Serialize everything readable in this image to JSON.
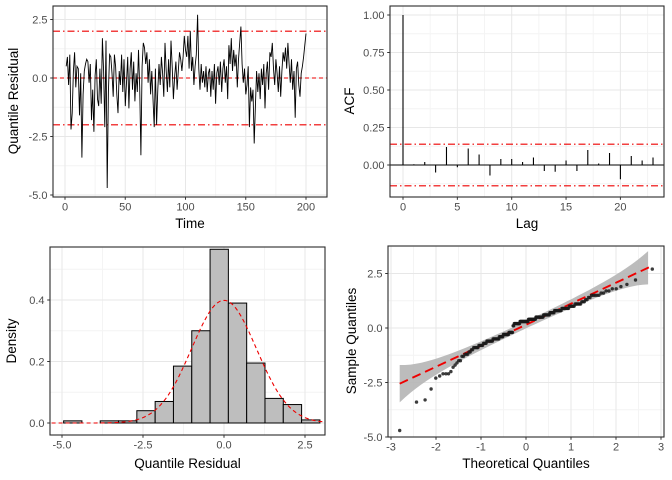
{
  "colors": {
    "accent_red": "#EE0000",
    "series_black": "#000000",
    "bar_fill": "#BEBEBE",
    "bar_stroke": "#000000",
    "band_gray": "#B5B5B5",
    "grid_major": "#E7E7E7",
    "grid_minor": "#F4F4F4",
    "panel_border": "#2B2B2B",
    "tick_text": "#4D4D4D",
    "background": "#FFFFFF"
  },
  "chart_data": [
    {
      "id": "residual-time-series",
      "type": "line",
      "xlabel": "Time",
      "ylabel": "Quantile Residual",
      "x_start": 1,
      "values": [
        0.5,
        0.9,
        -0.3,
        1.0,
        -2.2,
        -1.5,
        0.3,
        1.1,
        -0.4,
        0.5,
        0.4,
        -1.6,
        0.2,
        -3.4,
        -0.7,
        0.3,
        0.6,
        0.8,
        0.7,
        -0.2,
        0.6,
        -1.8,
        -0.5,
        -2.3,
        0.1,
        0.8,
        -0.9,
        -1.2,
        0.4,
        -1.1,
        1.7,
        0.3,
        -2.1,
        1.6,
        -4.7,
        -0.6,
        1.0,
        0.9,
        0.2,
        -0.8,
        1.0,
        0.5,
        -0.7,
        -1.5,
        0.3,
        -0.3,
        1.0,
        -0.6,
        0.8,
        -1.2,
        -0.2,
        0.9,
        -1.3,
        0.4,
        1.1,
        -0.5,
        0.7,
        -1.0,
        0.2,
        -0.6,
        1.2,
        -0.4,
        -3.3,
        0.5,
        1.5,
        1.3,
        0.6,
        1.1,
        -0.2,
        0.8,
        -0.7,
        0.3,
        -0.9,
        -2.1,
        0.4,
        -2.0,
        -0.5,
        0.6,
        -0.3,
        0.9,
        0.2,
        -0.8,
        1.5,
        0.3,
        -0.6,
        0.8,
        -0.4,
        1.6,
        0.5,
        -0.9,
        0.1,
        0.7,
        -0.5,
        0.3,
        1.1,
        0.8,
        0.3,
        0.9,
        1.8,
        1.2,
        0.9,
        1.8,
        0.4,
        2.0,
        0.3,
        0.9,
        -0.3,
        0.5,
        1.0,
        2.7,
        0.4,
        -0.5,
        0.6,
        -0.2,
        0.3,
        -0.4,
        0.5,
        -0.6,
        0.2,
        0.4,
        -0.8,
        0.3,
        -0.5,
        0.6,
        -1.1,
        0.2,
        0.5,
        -0.3,
        0.7,
        -0.6,
        0.4,
        0.8,
        -0.2,
        0.5,
        -0.9,
        1.4,
        0.6,
        1.7,
        0.3,
        1.2,
        0.5,
        1.0,
        -0.4,
        0.8,
        1.5,
        2.2,
        0.6,
        -0.2,
        0.4,
        -0.7,
        -0.3,
        0.5,
        -2.1,
        -0.4,
        -1.0,
        -0.5,
        -2.8,
        -1.2,
        0.3,
        -0.6,
        0.2,
        -0.9,
        0.4,
        -0.3,
        0.6,
        -1.3,
        0.2,
        0.7,
        -0.5,
        1.1,
        0.9,
        1.5,
        0.4,
        -0.3,
        0.8,
        0.2,
        -0.6,
        0.5,
        -0.8,
        0.3,
        1.1,
        0.7,
        1.3,
        0.4,
        1.5,
        0.6,
        -0.2,
        0.8,
        -0.5,
        0.3,
        -1.7,
        0.4,
        0.7,
        -0.3,
        -0.8,
        0.2,
        0.5,
        0.9,
        1.4,
        1.9
      ],
      "reference_lines": {
        "center": 0,
        "upper": 2,
        "lower": -2
      },
      "xticks": [
        0,
        50,
        100,
        150,
        200
      ],
      "xtick_labels": [
        "0",
        "50",
        "100",
        "150",
        "200"
      ],
      "yticks": [
        2.5,
        0,
        -2.5,
        -5
      ],
      "ytick_labels": [
        "2.5",
        "0.0",
        "-2.5",
        "-5.0"
      ],
      "xlim": [
        -10,
        217.4
      ],
      "ylim": [
        -5.085,
        3.077
      ],
      "grid": true
    },
    {
      "id": "acf",
      "type": "bar",
      "xlabel": "Lag",
      "ylabel": "ACF",
      "lag_start": 0,
      "values": [
        1.0,
        0.005,
        0.02,
        -0.05,
        0.12,
        -0.015,
        0.11,
        0.07,
        -0.07,
        0.04,
        0.04,
        0.02,
        0.05,
        -0.04,
        -0.045,
        0.03,
        -0.04,
        0.1,
        0.01,
        0.08,
        -0.095,
        0.06,
        0.03,
        0.05
      ],
      "confidence_bound": 0.139,
      "xticks": [
        0,
        5,
        10,
        15,
        20
      ],
      "xtick_labels": [
        "0",
        "5",
        "10",
        "15",
        "20"
      ],
      "yticks": [
        1,
        0.75,
        0.5,
        0.25,
        0
      ],
      "ytick_labels": [
        "1.00",
        "0.75",
        "0.50",
        "0.25",
        "0.00"
      ],
      "xlim": [
        -1.2,
        24.0
      ],
      "ylim": [
        -0.213,
        1.06
      ],
      "grid": true
    },
    {
      "id": "residual-histogram",
      "type": "histogram",
      "xlabel": "Quantile Residual",
      "ylabel": "Density",
      "bin_start": -4.95,
      "bin_width": 0.565,
      "densities": [
        0.007,
        0,
        0.007,
        0.007,
        0.04,
        0.07,
        0.185,
        0.3,
        0.565,
        0.39,
        0.195,
        0.08,
        0.06,
        0.01
      ],
      "overlay_curve": {
        "type": "normal_pdf",
        "mean": 0,
        "sd": 1,
        "peak": 0.399
      },
      "xticks": [
        -5,
        -2.5,
        0,
        2.5
      ],
      "xtick_labels": [
        "-5.0",
        "-2.5",
        "0.0",
        "2.5"
      ],
      "yticks": [
        0,
        0.2,
        0.4
      ],
      "ytick_labels": [
        "0.0",
        "0.2",
        "0.4"
      ],
      "xlim": [
        -5.37,
        3.117
      ],
      "ylim": [
        -0.039,
        0.5724
      ],
      "grid": true
    },
    {
      "id": "qq-plot",
      "type": "scatter",
      "xlabel": "Theoretical Quantiles",
      "ylabel": "Sample Quantiles",
      "n": 200,
      "sample_source": "sorted values of chart_data[0].values",
      "theoretical": "standard normal quantiles at (i-0.5)/200",
      "reference_line": "robust line through sample quartiles, red longdash",
      "confidence_band": {
        "level": 0.95,
        "style": "pointwise wedge, gray"
      },
      "xticks": [
        -3,
        -2,
        -1,
        0,
        1,
        2,
        3
      ],
      "xtick_labels": [
        "-3",
        "-2",
        "-1",
        "0",
        "1",
        "2",
        "3"
      ],
      "yticks": [
        2.5,
        0,
        -2.5,
        -5
      ],
      "ytick_labels": [
        "2.5",
        "0.0",
        "-2.5",
        "-5.0"
      ],
      "xlim": [
        -3.067,
        3.067
      ],
      "ylim": [
        -5.0,
        3.76
      ],
      "grid": true
    }
  ]
}
